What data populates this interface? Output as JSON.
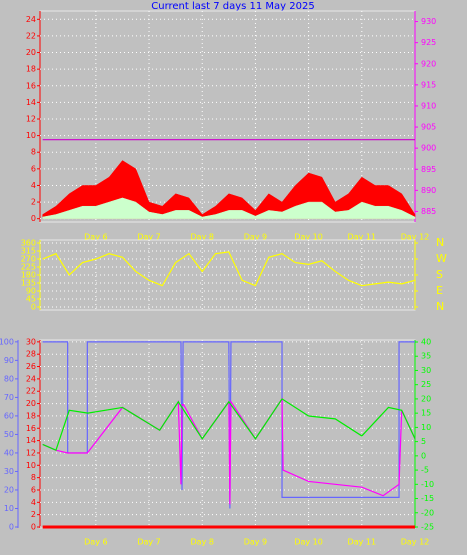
{
  "chart_data": [
    {
      "type": "line",
      "title": "Current last 7 days 11 May 2025",
      "xlim": [
        4.95,
        12.0
      ],
      "xticks": [
        {
          "value": 6,
          "label": "Day 6"
        },
        {
          "value": 7,
          "label": "Day 7"
        },
        {
          "value": 8,
          "label": "Day 8"
        },
        {
          "value": 9,
          "label": "Day 9"
        },
        {
          "value": 10,
          "label": "Day 10"
        },
        {
          "value": 11,
          "label": "Day 11"
        },
        {
          "value": 12,
          "label": "Day 12"
        }
      ],
      "ylim": [
        -0.4,
        25
      ],
      "yticks": [
        0,
        2,
        4,
        6,
        8,
        10,
        12,
        14,
        16,
        18,
        20,
        22,
        24
      ],
      "y2lim": [
        882.5,
        932.5
      ],
      "y2ticks": [
        885,
        890,
        895,
        900,
        905,
        910,
        915,
        920,
        925,
        930
      ],
      "axis_colors": {
        "y": "#ff0000",
        "y2": "#ff00ff"
      },
      "grid": true,
      "series": [
        {
          "color": "#ff0000",
          "fill": true,
          "axis": "y",
          "x": [
            5,
            5.25,
            5.5,
            5.75,
            6,
            6.25,
            6.5,
            6.75,
            7,
            7.25,
            7.5,
            7.75,
            8,
            8.25,
            8.5,
            8.75,
            9,
            9.25,
            9.5,
            9.75,
            10,
            10.25,
            10.5,
            10.75,
            11,
            11.25,
            11.5,
            11.75,
            12
          ],
          "values": [
            0.5,
            1.5,
            3,
            4,
            4,
            5,
            7,
            6,
            2,
            1.5,
            3,
            2.5,
            0.5,
            1.5,
            3,
            2.5,
            1,
            3,
            2,
            4,
            5.5,
            5,
            2,
            3,
            5,
            4,
            4,
            3,
            0.5
          ]
        },
        {
          "color": "#ccffcc",
          "fill": true,
          "axis": "y",
          "x": [
            5,
            5.25,
            5.5,
            5.75,
            6,
            6.25,
            6.5,
            6.75,
            7,
            7.25,
            7.5,
            7.75,
            8,
            8.25,
            8.5,
            8.75,
            9,
            9.25,
            9.5,
            9.75,
            10,
            10.25,
            10.5,
            10.75,
            11,
            11.25,
            11.5,
            11.75,
            12
          ],
          "values": [
            0.2,
            0.5,
            1,
            1.5,
            1.5,
            2,
            2.5,
            2,
            0.8,
            0.5,
            1,
            1,
            0.2,
            0.5,
            1,
            1,
            0.3,
            1,
            0.8,
            1.5,
            2,
            2,
            0.8,
            1,
            2,
            1.5,
            1.5,
            1,
            0.2
          ]
        },
        {
          "color": "#cc00cc",
          "fill": false,
          "axis": "y2",
          "x": [
            5,
            12
          ],
          "values": [
            902,
            902
          ]
        }
      ]
    },
    {
      "type": "line",
      "xlim": [
        4.95,
        12.0
      ],
      "xticks": [
        6,
        7,
        8,
        9,
        10,
        11,
        12
      ],
      "ylim": [
        -17,
        377
      ],
      "yticks": [
        0,
        45,
        90,
        135,
        180,
        225,
        270,
        315,
        360
      ],
      "y2lim": [
        -17,
        377
      ],
      "y2ticks": [
        {
          "value": 360,
          "label": "N"
        },
        {
          "value": 270,
          "label": "W"
        },
        {
          "value": 180,
          "label": "S"
        },
        {
          "value": 90,
          "label": "E"
        },
        {
          "value": 0,
          "label": "N"
        }
      ],
      "axis_colors": {
        "y": "#ffff00",
        "y2": "#ffff00"
      },
      "grid": true,
      "series": [
        {
          "color": "#ffff00",
          "fill": false,
          "axis": "y",
          "x": [
            5,
            5.25,
            5.5,
            5.75,
            6,
            6.25,
            6.5,
            6.75,
            7,
            7.25,
            7.5,
            7.75,
            8,
            8.25,
            8.5,
            8.75,
            9,
            9.25,
            9.5,
            9.75,
            10,
            10.25,
            10.5,
            10.75,
            11,
            11.25,
            11.5,
            11.75,
            12
          ],
          "values": [
            270,
            300,
            180,
            250,
            270,
            300,
            280,
            200,
            150,
            120,
            250,
            300,
            200,
            300,
            310,
            150,
            120,
            280,
            300,
            250,
            240,
            260,
            200,
            150,
            120,
            130,
            140,
            130,
            150
          ]
        }
      ]
    },
    {
      "type": "line",
      "xlim": [
        4.95,
        12.0
      ],
      "xticks": [
        {
          "value": 6,
          "label": "Day 6"
        },
        {
          "value": 7,
          "label": "Day 7"
        },
        {
          "value": 8,
          "label": "Day 8"
        },
        {
          "value": 9,
          "label": "Day 9"
        },
        {
          "value": 10,
          "label": "Day 10"
        },
        {
          "value": 11,
          "label": "Day 11"
        },
        {
          "value": 12,
          "label": "Day 12"
        }
      ],
      "ylim": [
        -0.16,
        30.3
      ],
      "yticks": [
        0,
        2,
        4,
        6,
        8,
        10,
        12,
        14,
        16,
        18,
        20,
        22,
        24,
        26,
        28,
        30
      ],
      "y2lim": [
        -25.35,
        40.7
      ],
      "y2ticks": [
        -25,
        -20,
        -15,
        -10,
        -5,
        0,
        5,
        10,
        15,
        20,
        25,
        30,
        35,
        40
      ],
      "y3lim": [
        -0.54,
        101
      ],
      "y3ticks": [
        0,
        10,
        20,
        30,
        40,
        50,
        60,
        70,
        80,
        90,
        100
      ],
      "axis_colors": {
        "y": "#ff0000",
        "y2": "#00ff00",
        "y3": "#6666ff"
      },
      "grid": true,
      "series": [
        {
          "color": "#6666ff",
          "fill": false,
          "axis": "y3",
          "x": [
            5,
            5.47,
            5.47,
            5.84,
            5.84,
            7.6,
            7.62,
            7.64,
            8.5,
            8.52,
            8.54,
            9.5,
            9.5,
            11.7,
            11.7,
            12
          ],
          "values": [
            100,
            100,
            40,
            40,
            100,
            100,
            20,
            100,
            100,
            10,
            100,
            100,
            16,
            16,
            100,
            100
          ]
        },
        {
          "color": "#ff00ff",
          "fill": false,
          "axis": "y2",
          "x": [
            5,
            5.25,
            5.47,
            5.84,
            6.5,
            7.2,
            7.55,
            7.6,
            7.62,
            7.65,
            8.0,
            8.5,
            8.52,
            8.54,
            9.0,
            9.5,
            9.52,
            10.0,
            10.5,
            11.0,
            11.4,
            11.7,
            11.75,
            12
          ],
          "values": [
            4,
            2,
            1,
            1,
            17,
            9,
            19,
            -10,
            18,
            18,
            6,
            19,
            -17,
            19,
            6,
            20,
            -5,
            -9,
            -10,
            -11,
            -14,
            -10,
            16,
            6
          ]
        },
        {
          "color": "#00ee00",
          "fill": false,
          "axis": "y2",
          "x": [
            5,
            5.25,
            5.5,
            5.85,
            6.5,
            7.2,
            7.55,
            8.0,
            8.5,
            9.0,
            9.5,
            10.0,
            10.5,
            11.0,
            11.5,
            11.75,
            12
          ],
          "values": [
            4,
            2,
            16,
            15,
            17,
            9,
            19,
            6,
            19,
            6,
            20,
            14,
            13,
            7,
            17,
            16,
            6
          ]
        },
        {
          "color": "#ff0000",
          "fill": false,
          "axis": "y",
          "width": 3,
          "x": [
            5,
            12
          ],
          "values": [
            0,
            0
          ]
        }
      ]
    }
  ]
}
